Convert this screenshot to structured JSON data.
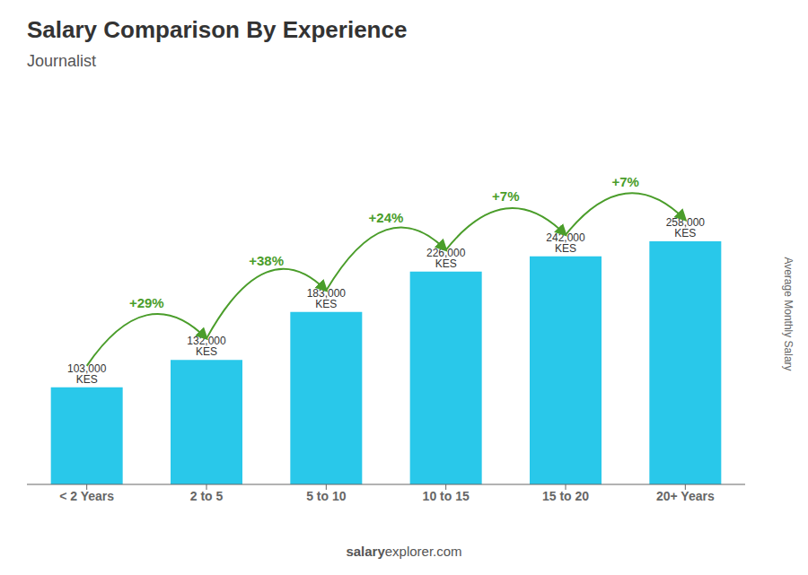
{
  "chart_data": {
    "type": "bar",
    "title": "Salary Comparison By Experience",
    "subtitle": "Journalist",
    "categories": [
      "< 2 Years",
      "2 to 5",
      "5 to 10",
      "10 to 15",
      "15 to 20",
      "20+ Years"
    ],
    "values": [
      103000,
      132000,
      183000,
      226000,
      242000,
      258000
    ],
    "value_labels": [
      "103,000 KES",
      "132,000 KES",
      "183,000 KES",
      "226,000 KES",
      "242,000 KES",
      "258,000 KES"
    ],
    "data_labels": true,
    "color": "#29c8ea",
    "ylim": [
      0,
      399900
    ],
    "ylabel": "Average Monthly Salary",
    "tick_labels": "x",
    "grid": false,
    "annotations": [
      "+29%",
      "+38%",
      "+24%",
      "+7%",
      "+7%"
    ],
    "watermark": [
      "salary",
      "explorer.com"
    ]
  }
}
